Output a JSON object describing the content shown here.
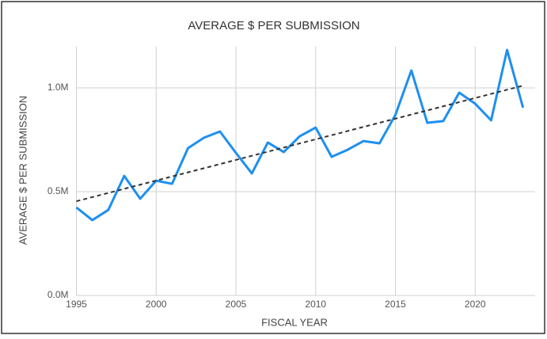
{
  "chart_data": {
    "type": "line",
    "title": "AVERAGE $ PER SUBMISSION",
    "x_label": "FISCAL YEAR",
    "y_label": "AVERAGE $ PER SUBMISSION",
    "x": [
      1995,
      1996,
      1997,
      1998,
      1999,
      2000,
      2001,
      2002,
      2003,
      2004,
      2005,
      2006,
      2007,
      2008,
      2009,
      2010,
      2011,
      2012,
      2013,
      2014,
      2015,
      2016,
      2017,
      2018,
      2019,
      2020,
      2021,
      2022,
      2023
    ],
    "series": [
      {
        "name": "Average $ per Submission",
        "color": "#1e8ff0",
        "values": [
          424000,
          363000,
          412000,
          576000,
          466000,
          553000,
          538000,
          710000,
          760000,
          790000,
          687000,
          588000,
          737000,
          691000,
          767000,
          809000,
          668000,
          702000,
          744000,
          733000,
          870000,
          1084000,
          832000,
          840000,
          977000,
          924000,
          844000,
          1183000,
          905000
        ]
      }
    ],
    "trendline": {
      "x": [
        1995,
        2023
      ],
      "values": [
        454000,
        1011000
      ],
      "color": "#333333"
    },
    "xlim": [
      1995,
      2023
    ],
    "xticks": [
      1995,
      2000,
      2005,
      2010,
      2015,
      2020
    ],
    "ylim": [
      0,
      1200000
    ],
    "yticks": [
      {
        "value": 0,
        "label": "0.0M"
      },
      {
        "value": 500000,
        "label": "0.5M"
      },
      {
        "value": 1000000,
        "label": "1.0M"
      }
    ],
    "grid": true
  }
}
